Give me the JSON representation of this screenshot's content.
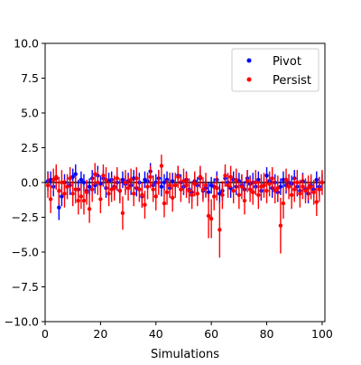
{
  "chart_data": {
    "type": "scatter",
    "title": "",
    "xlabel": "Simulations",
    "ylabel": "",
    "xlim": [
      0,
      101
    ],
    "ylim": [
      -10,
      10
    ],
    "grid": false,
    "legend_position": "top-right",
    "reference_line_y": 0,
    "x_ticks": [
      0,
      20,
      40,
      60,
      80,
      100
    ],
    "x_tick_labels": [
      "0",
      "20",
      "40",
      "60",
      "80",
      "100"
    ],
    "y_ticks": [
      -10,
      -7.5,
      -5,
      -2.5,
      0,
      2.5,
      5,
      7.5,
      10
    ],
    "y_tick_labels": [
      "−10.0",
      "−7.5",
      "−5.0",
      "−2.5",
      "0.0",
      "2.5",
      "5.0",
      "7.5",
      "10.0"
    ],
    "series": [
      {
        "name": "Pivot",
        "color": "#0000ff",
        "x": [
          1,
          2,
          3,
          4,
          5,
          6,
          7,
          8,
          9,
          10,
          11,
          12,
          13,
          14,
          15,
          16,
          17,
          18,
          19,
          20,
          21,
          22,
          23,
          24,
          25,
          26,
          27,
          28,
          29,
          30,
          31,
          32,
          33,
          34,
          35,
          36,
          37,
          38,
          39,
          40,
          41,
          42,
          43,
          44,
          45,
          46,
          47,
          48,
          49,
          50,
          51,
          52,
          53,
          54,
          55,
          56,
          57,
          58,
          59,
          60,
          61,
          62,
          63,
          64,
          65,
          66,
          67,
          68,
          69,
          70,
          71,
          72,
          73,
          74,
          75,
          76,
          77,
          78,
          79,
          80,
          81,
          82,
          83,
          84,
          85,
          86,
          87,
          88,
          89,
          90,
          91,
          92,
          93,
          94,
          95,
          96,
          97,
          98,
          99,
          100
        ],
        "y": [
          0.1,
          0.2,
          -0.3,
          0.3,
          -1.8,
          -1.0,
          0.0,
          -0.3,
          -0.2,
          0.4,
          0.6,
          -0.5,
          0.2,
          0.0,
          -0.6,
          -0.3,
          0.3,
          -0.2,
          0.5,
          -0.1,
          0.3,
          -0.4,
          0.1,
          0.2,
          -0.3,
          0.0,
          -0.6,
          0.2,
          -0.1,
          0.1,
          -0.2,
          0.3,
          -0.4,
          0.0,
          -1.0,
          0.2,
          0.1,
          0.8,
          -0.2,
          0.0,
          0.3,
          -0.3,
          0.0,
          0.2,
          -0.4,
          0.1,
          -0.2,
          0.5,
          0.0,
          -0.3,
          0.2,
          -0.5,
          -0.7,
          0.1,
          -0.2,
          0.3,
          -0.6,
          -0.4,
          -0.7,
          -0.2,
          -0.3,
          0.2,
          -0.8,
          -0.6,
          0.3,
          0.0,
          -0.4,
          0.2,
          -0.3,
          0.1,
          -0.2,
          -0.5,
          0.3,
          -0.1,
          0.0,
          -0.3,
          0.2,
          -0.6,
          -0.2,
          0.5,
          0.1,
          -0.4,
          0.0,
          -0.7,
          -0.3,
          0.2,
          -0.2,
          0.0,
          -0.1,
          0.3,
          -0.3,
          -0.6,
          0.1,
          -0.5,
          -0.8,
          -0.2,
          -0.5,
          0.2,
          -0.3,
          0.0
        ],
        "err": [
          0.7,
          0.6,
          0.7,
          0.8,
          0.9,
          0.7,
          0.6,
          0.6,
          0.7,
          0.6,
          0.7,
          0.7,
          0.6,
          0.6,
          0.7,
          0.6,
          0.6,
          0.6,
          0.7,
          0.6,
          0.6,
          0.7,
          0.6,
          0.6,
          0.7,
          0.6,
          0.7,
          0.6,
          0.6,
          0.6,
          0.7,
          0.6,
          0.6,
          0.7,
          0.8,
          0.6,
          0.6,
          0.6,
          0.7,
          0.6,
          0.6,
          0.7,
          0.6,
          0.6,
          0.7,
          0.6,
          0.6,
          0.7,
          0.6,
          0.6,
          0.6,
          0.7,
          0.7,
          0.6,
          0.6,
          0.7,
          0.6,
          0.6,
          0.7,
          0.6,
          0.6,
          0.6,
          0.7,
          0.7,
          0.6,
          0.6,
          0.7,
          0.6,
          0.6,
          0.6,
          0.7,
          0.6,
          0.6,
          0.6,
          0.7,
          0.6,
          0.6,
          0.7,
          0.6,
          0.6,
          0.6,
          0.7,
          0.6,
          0.7,
          0.6,
          0.6,
          0.6,
          0.6,
          0.6,
          0.6,
          0.7,
          0.6,
          0.6,
          0.7,
          0.7,
          0.6,
          0.6,
          0.6,
          0.7,
          0.6
        ]
      },
      {
        "name": "Persist",
        "color": "#ff0000",
        "x": [
          1,
          2,
          3,
          4,
          5,
          6,
          7,
          8,
          9,
          10,
          11,
          12,
          13,
          14,
          15,
          16,
          17,
          18,
          19,
          20,
          21,
          22,
          23,
          24,
          25,
          26,
          27,
          28,
          29,
          30,
          31,
          32,
          33,
          34,
          35,
          36,
          37,
          38,
          39,
          40,
          41,
          42,
          43,
          44,
          45,
          46,
          47,
          48,
          49,
          50,
          51,
          52,
          53,
          54,
          55,
          56,
          57,
          58,
          59,
          60,
          61,
          62,
          63,
          64,
          65,
          66,
          67,
          68,
          69,
          70,
          71,
          72,
          73,
          74,
          75,
          76,
          77,
          78,
          79,
          80,
          81,
          82,
          83,
          84,
          85,
          86,
          87,
          88,
          89,
          90,
          91,
          92,
          93,
          94,
          95,
          96,
          97,
          98,
          99,
          100
        ],
        "y": [
          -0.2,
          -1.2,
          0.2,
          0.4,
          -0.6,
          0.0,
          -0.8,
          -0.3,
          0.3,
          -0.8,
          -0.5,
          -1.3,
          -1.0,
          -1.3,
          -0.7,
          -1.9,
          -0.5,
          0.6,
          0.0,
          -1.2,
          0.5,
          0.2,
          -0.8,
          -0.5,
          -0.4,
          0.3,
          -0.6,
          -2.2,
          0.0,
          -0.4,
          0.2,
          -0.8,
          0.3,
          -0.5,
          -0.9,
          -1.6,
          -0.3,
          0.4,
          -0.5,
          -1.0,
          0.0,
          1.2,
          -1.5,
          -0.7,
          -0.2,
          -1.1,
          -0.2,
          0.4,
          -0.5,
          0.1,
          -0.2,
          -0.6,
          -0.9,
          -0.1,
          -0.8,
          0.4,
          -0.5,
          -0.2,
          -2.4,
          -2.6,
          -1.0,
          -0.4,
          -3.4,
          -0.9,
          0.5,
          -0.2,
          0.4,
          -0.6,
          0.2,
          -0.9,
          -0.3,
          -1.3,
          0.1,
          -0.5,
          -0.7,
          0.0,
          -0.9,
          -0.3,
          -0.2,
          -0.6,
          -0.1,
          0.3,
          -0.6,
          -0.4,
          -3.1,
          -1.5,
          0.2,
          -0.3,
          -0.9,
          -0.5,
          0.0,
          -0.8,
          -0.3,
          -0.6,
          -0.4,
          -0.3,
          -0.7,
          -1.4,
          -0.5,
          0.0
        ],
        "err": [
          0.9,
          1.0,
          0.8,
          0.9,
          1.0,
          0.9,
          1.0,
          0.9,
          0.8,
          0.9,
          1.0,
          1.0,
          0.9,
          1.0,
          0.9,
          1.0,
          0.9,
          0.8,
          0.9,
          1.0,
          0.8,
          0.9,
          0.9,
          0.9,
          0.9,
          0.8,
          0.9,
          1.2,
          0.9,
          0.9,
          0.8,
          0.9,
          0.8,
          0.9,
          0.9,
          1.0,
          0.9,
          0.8,
          0.9,
          1.0,
          0.9,
          0.8,
          1.0,
          0.9,
          0.9,
          1.0,
          0.9,
          0.8,
          0.9,
          0.9,
          0.9,
          0.9,
          1.0,
          0.9,
          0.9,
          0.8,
          0.9,
          0.9,
          1.6,
          1.4,
          1.0,
          0.9,
          2.0,
          1.0,
          0.8,
          0.9,
          0.8,
          0.9,
          0.8,
          1.0,
          0.9,
          1.0,
          0.8,
          0.9,
          0.9,
          0.9,
          1.0,
          0.9,
          0.9,
          0.9,
          0.9,
          0.8,
          0.9,
          0.9,
          2.0,
          1.1,
          0.8,
          0.9,
          1.0,
          0.9,
          0.9,
          1.0,
          0.9,
          0.9,
          0.9,
          0.9,
          0.9,
          1.0,
          0.9,
          0.9
        ]
      }
    ]
  }
}
